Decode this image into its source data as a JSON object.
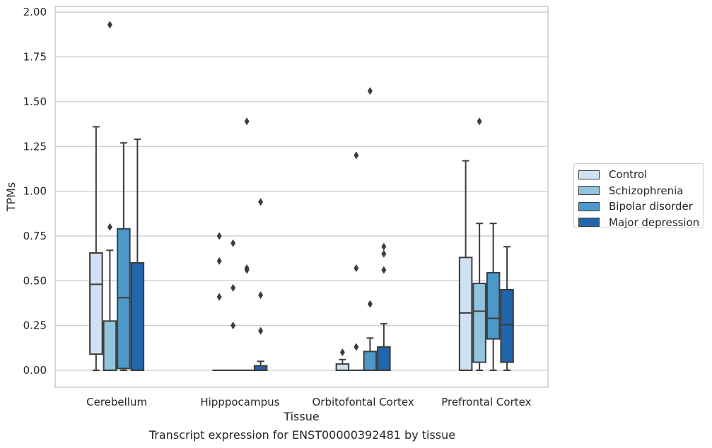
{
  "chart_data": {
    "type": "box",
    "caption": "Transcript expression for ENST00000392481 by tissue",
    "xlabel": "Tissue",
    "ylabel": "TPMs",
    "ylim": [
      -0.09,
      2.03
    ],
    "yticks": [
      "0.00",
      "0.25",
      "0.50",
      "0.75",
      "1.00",
      "1.25",
      "1.50",
      "1.75",
      "2.00"
    ],
    "grid": true,
    "legend_position": "outside-right",
    "categories": [
      "Cerebellum",
      "Hipppocampus",
      "Orbitofontal Cortex",
      "Prefrontal Cortex"
    ],
    "series": [
      {
        "name": "Control",
        "color": "#cfe1f2",
        "boxes": [
          {
            "q1": 0.09,
            "median": 0.48,
            "q3": 0.655,
            "whisker_low": 0.0,
            "whisker_high": 1.36,
            "outliers": []
          },
          {
            "q1": 0.0,
            "median": 0.0,
            "q3": 0.0,
            "whisker_low": 0.0,
            "whisker_high": 0.0,
            "outliers": [
              0.41,
              0.61,
              0.75
            ]
          },
          {
            "q1": 0.0,
            "median": 0.0,
            "q3": 0.035,
            "whisker_low": 0.0,
            "whisker_high": 0.06,
            "outliers": [
              0.1
            ]
          },
          {
            "q1": 0.0,
            "median": 0.32,
            "q3": 0.63,
            "whisker_low": 0.0,
            "whisker_high": 1.17,
            "outliers": []
          }
        ]
      },
      {
        "name": "Schizophrenia",
        "color": "#93c4de",
        "boxes": [
          {
            "q1": 0.0,
            "median": 0.0,
            "q3": 0.275,
            "whisker_low": 0.0,
            "whisker_high": 0.67,
            "outliers": [
              0.8,
              1.93
            ]
          },
          {
            "q1": 0.0,
            "median": 0.0,
            "q3": 0.0,
            "whisker_low": 0.0,
            "whisker_high": 0.0,
            "outliers": [
              0.25,
              0.46,
              0.71
            ]
          },
          {
            "q1": 0.0,
            "median": 0.0,
            "q3": 0.0,
            "whisker_low": 0.0,
            "whisker_high": 0.0,
            "outliers": [
              0.13,
              0.57,
              1.2
            ]
          },
          {
            "q1": 0.045,
            "median": 0.33,
            "q3": 0.485,
            "whisker_low": 0.0,
            "whisker_high": 0.82,
            "outliers": [
              1.39
            ]
          }
        ]
      },
      {
        "name": "Bipolar disorder",
        "color": "#4b98c9",
        "boxes": [
          {
            "q1": 0.01,
            "median": 0.405,
            "q3": 0.79,
            "whisker_low": 0.0,
            "whisker_high": 1.27,
            "outliers": []
          },
          {
            "q1": 0.0,
            "median": 0.0,
            "q3": 0.0,
            "whisker_low": 0.0,
            "whisker_high": 0.0,
            "outliers": [
              0.56,
              0.57,
              1.39
            ]
          },
          {
            "q1": 0.0,
            "median": 0.0,
            "q3": 0.105,
            "whisker_low": 0.0,
            "whisker_high": 0.18,
            "outliers": [
              0.37,
              1.56
            ]
          },
          {
            "q1": 0.175,
            "median": 0.29,
            "q3": 0.545,
            "whisker_low": 0.0,
            "whisker_high": 0.82,
            "outliers": []
          }
        ]
      },
      {
        "name": "Major depression",
        "color": "#2166ab",
        "boxes": [
          {
            "q1": 0.0,
            "median": 0.0,
            "q3": 0.6,
            "whisker_low": 0.0,
            "whisker_high": 1.29,
            "outliers": []
          },
          {
            "q1": 0.0,
            "median": 0.0,
            "q3": 0.025,
            "whisker_low": 0.0,
            "whisker_high": 0.05,
            "outliers": [
              0.22,
              0.42,
              0.94
            ]
          },
          {
            "q1": 0.0,
            "median": 0.0,
            "q3": 0.13,
            "whisker_low": 0.0,
            "whisker_high": 0.26,
            "outliers": [
              0.56,
              0.65,
              0.69
            ]
          },
          {
            "q1": 0.045,
            "median": 0.255,
            "q3": 0.45,
            "whisker_low": 0.0,
            "whisker_high": 0.69,
            "outliers": []
          }
        ]
      }
    ]
  }
}
